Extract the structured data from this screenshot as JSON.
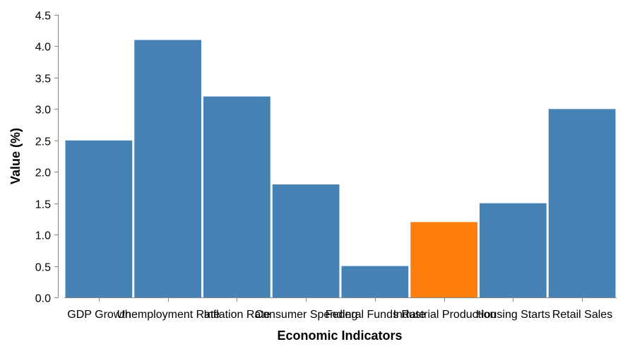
{
  "chart_data": {
    "type": "bar",
    "categories": [
      "GDP Growth",
      "Unemployment Rate",
      "Inflation Rate",
      "Consumer Spending",
      "Federal Funds Rate",
      "Industrial Production",
      "Housing Starts",
      "Retail Sales"
    ],
    "values": [
      2.5,
      4.1,
      3.2,
      1.8,
      0.5,
      1.2,
      1.5,
      3.0
    ],
    "highlight_index": 5,
    "colors": {
      "bar": "#4682b4",
      "highlight": "#ff7f0e",
      "axis": "#888888"
    },
    "xlabel": "Economic Indicators",
    "ylabel": "Value (%)",
    "ylim": [
      0,
      4.5
    ],
    "yticks": [
      0.0,
      0.5,
      1.0,
      1.5,
      2.0,
      2.5,
      3.0,
      3.5,
      4.0,
      4.5
    ],
    "ytick_labels": [
      "0.0",
      "0.5",
      "1.0",
      "1.5",
      "2.0",
      "2.5",
      "3.0",
      "3.5",
      "4.0",
      "4.5"
    ],
    "grid": false
  }
}
